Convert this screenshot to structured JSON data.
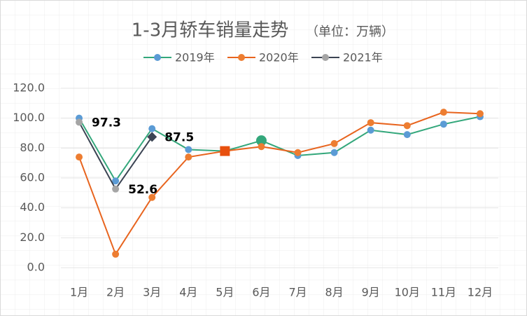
{
  "chart_data": {
    "type": "line",
    "title": "1-3月轿车销量走势",
    "subtitle": "（单位：万辆）",
    "categories": [
      "1月",
      "2月",
      "3月",
      "4月",
      "5月",
      "6月",
      "7月",
      "8月",
      "9月",
      "10月",
      "11月",
      "12月"
    ],
    "series": [
      {
        "name": "2019年",
        "color": "#33a77b",
        "marker_color": "#5b9bd5",
        "values": [
          100,
          58,
          93,
          79,
          78,
          85,
          75,
          77,
          92,
          89,
          96,
          101
        ]
      },
      {
        "name": "2020年",
        "color": "#e8641e",
        "marker_color": "#ed7d31",
        "values": [
          74,
          9,
          47,
          74,
          78,
          81,
          77,
          83,
          97,
          95,
          104,
          103
        ]
      },
      {
        "name": "2021年",
        "color": "#3b4453",
        "marker_color": "#a5a5a5",
        "values": [
          97.3,
          52.6,
          87.5,
          null,
          null,
          null,
          null,
          null,
          null,
          null,
          null,
          null
        ],
        "data_labels": true
      }
    ],
    "special_markers": [
      {
        "series": 2,
        "index": 2,
        "shape": "diamond",
        "color": "#3b4453"
      },
      {
        "series": 1,
        "index": 4,
        "shape": "square",
        "color": "#e8500e"
      },
      {
        "series": 0,
        "index": 5,
        "shape": "big-circle",
        "color": "#33a77b"
      }
    ],
    "ylim": [
      0,
      120
    ],
    "yticks": [
      {
        "value": 0,
        "label": "0.0"
      },
      {
        "value": 20,
        "label": "20.0"
      },
      {
        "value": 40,
        "label": "40.0"
      },
      {
        "value": 60,
        "label": "60.0"
      },
      {
        "value": 80,
        "label": "80.0"
      },
      {
        "value": 100,
        "label": "100.0"
      },
      {
        "value": 120,
        "label": "120.0"
      }
    ],
    "grid": true,
    "legend": "top"
  }
}
